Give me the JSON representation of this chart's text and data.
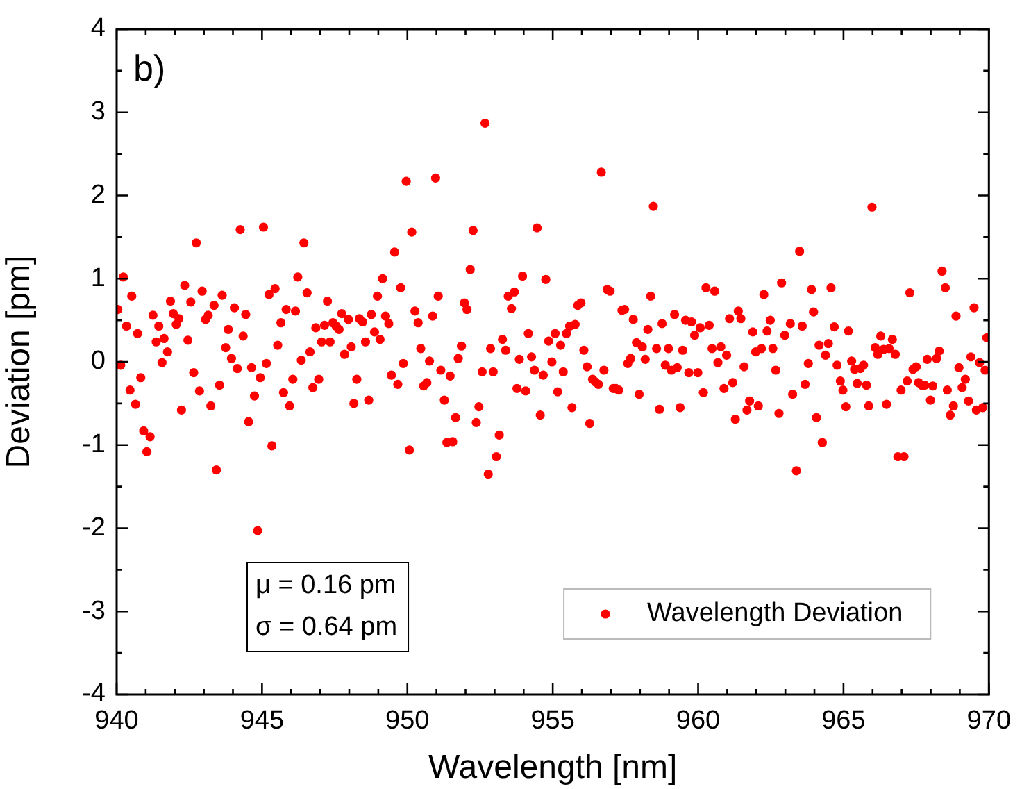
{
  "chart_data": {
    "type": "scatter",
    "xlabel": "Wavelength [nm]",
    "ylabel": "Deviation [pm]",
    "annotations": [
      "b)",
      "μ = 0.16 pm",
      "σ = 0.64 pm"
    ],
    "xlim": [
      940,
      970
    ],
    "ylim": [
      -4,
      4
    ],
    "xticks": [
      940,
      {
        "value": 941,
        "label": null
      },
      {
        "value": 942,
        "label": null
      },
      {
        "value": 943,
        "label": null
      },
      {
        "value": 944,
        "label": null
      },
      945,
      {
        "value": 946,
        "label": null
      },
      {
        "value": 947,
        "label": null
      },
      {
        "value": 948,
        "label": null
      },
      {
        "value": 949,
        "label": null
      },
      950,
      {
        "value": 951,
        "label": null
      },
      {
        "value": 952,
        "label": null
      },
      {
        "value": 953,
        "label": null
      },
      {
        "value": 954,
        "label": null
      },
      955,
      {
        "value": 956,
        "label": null
      },
      {
        "value": 957,
        "label": null
      },
      {
        "value": 958,
        "label": null
      },
      {
        "value": 959,
        "label": null
      },
      960,
      {
        "value": 961,
        "label": null
      },
      {
        "value": 962,
        "label": null
      },
      {
        "value": 963,
        "label": null
      },
      {
        "value": 964,
        "label": null
      },
      965,
      {
        "value": 966,
        "label": null
      },
      {
        "value": 967,
        "label": null
      },
      {
        "value": 968,
        "label": null
      },
      {
        "value": 969,
        "label": null
      },
      970
    ],
    "yticks": [
      -4,
      {
        "value": -3.5,
        "label": null
      },
      -3,
      {
        "value": -2.5,
        "label": null
      },
      -2,
      {
        "value": -1.5,
        "label": null
      },
      -1,
      {
        "value": -0.5,
        "label": null
      },
      0,
      {
        "value": 0.5,
        "label": null
      },
      1,
      {
        "value": 1.5,
        "label": null
      },
      2,
      {
        "value": 2.5,
        "label": null
      },
      3,
      {
        "value": 3.5,
        "label": null
      },
      4
    ],
    "grid": false,
    "legend": "bottom right",
    "marker": "circle",
    "series": [
      {
        "name": "Wavelength Deviation",
        "color": "#ff0000",
        "x": [
          940.04,
          940.23,
          940.14,
          940.34,
          940.52,
          940.72,
          940.46,
          940.65,
          940.83,
          940.93,
          941.15,
          941.04,
          941.25,
          941.36,
          941.45,
          941.56,
          941.63,
          941.75,
          941.85,
          941.95,
          942.05,
          942.14,
          942.23,
          942.34,
          942.45,
          942.55,
          942.65,
          942.74,
          942.85,
          942.94,
          943.06,
          943.15,
          943.24,
          943.35,
          943.43,
          943.54,
          943.63,
          943.75,
          943.84,
          943.95,
          944.05,
          944.15,
          944.25,
          944.35,
          944.44,
          944.54,
          944.64,
          944.74,
          944.85,
          944.94,
          945.05,
          945.15,
          945.24,
          945.34,
          945.45,
          945.54,
          945.65,
          945.74,
          945.83,
          945.95,
          946.06,
          946.15,
          946.23,
          946.35,
          946.44,
          946.55,
          946.65,
          946.75,
          946.85,
          946.95,
          947.05,
          947.15,
          947.25,
          947.34,
          947.44,
          947.55,
          947.65,
          947.74,
          947.84,
          947.97,
          948.07,
          948.16,
          948.26,
          948.35,
          948.46,
          948.56,
          948.67,
          948.76,
          948.87,
          948.97,
          949.06,
          949.15,
          949.25,
          949.36,
          949.45,
          949.56,
          949.67,
          949.77,
          949.86,
          949.96,
          950.07,
          950.15,
          950.26,
          950.37,
          950.46,
          950.56,
          950.67,
          950.76,
          950.87,
          950.97,
          951.06,
          951.15,
          951.27,
          951.36,
          951.47,
          951.56,
          951.66,
          951.75,
          951.86,
          951.96,
          952.05,
          952.16,
          952.26,
          952.37,
          952.46,
          952.57,
          952.67,
          952.78,
          952.86,
          952.95,
          953.06,
          953.16,
          953.27,
          953.38,
          953.47,
          953.58,
          953.68,
          953.77,
          953.85,
          953.96,
          954.07,
          954.16,
          954.27,
          954.37,
          954.46,
          954.57,
          954.67,
          954.76,
          954.86,
          954.97,
          955.08,
          955.17,
          955.27,
          955.36,
          955.47,
          955.58,
          955.66,
          955.77,
          955.86,
          955.97,
          956.07,
          956.18,
          956.27,
          956.37,
          956.46,
          956.57,
          956.67,
          956.76,
          956.87,
          956.97,
          957.08,
          957.17,
          957.27,
          957.38,
          957.47,
          957.58,
          957.68,
          957.77,
          957.88,
          957.97,
          958.08,
          958.18,
          958.27,
          958.37,
          958.46,
          958.57,
          958.67,
          958.76,
          958.87,
          958.98,
          959.08,
          959.19,
          959.28,
          959.38,
          959.47,
          959.57,
          959.68,
          959.77,
          959.88,
          959.99,
          960.07,
          960.18,
          960.27,
          960.38,
          960.48,
          960.57,
          960.68,
          960.78,
          960.89,
          960.98,
          961.08,
          961.19,
          961.28,
          961.38,
          961.47,
          961.58,
          961.68,
          961.77,
          961.88,
          961.98,
          962.07,
          962.18,
          962.26,
          962.37,
          962.48,
          962.57,
          962.67,
          962.78,
          962.87,
          962.98,
          963.17,
          963.25,
          963.38,
          963.49,
          963.58,
          963.68,
          963.79,
          963.9,
          963.97,
          964.07,
          964.16,
          964.27,
          964.38,
          964.48,
          964.57,
          964.68,
          964.78,
          964.89,
          964.98,
          965.08,
          965.17,
          965.28,
          965.38,
          965.47,
          965.58,
          965.69,
          965.79,
          965.87,
          965.98,
          966.09,
          966.18,
          966.28,
          966.38,
          966.48,
          966.57,
          966.68,
          966.78,
          966.87,
          967.08,
          966.98,
          967.19,
          967.28,
          967.39,
          967.5,
          967.58,
          967.69,
          967.79,
          967.88,
          967.99,
          968.07,
          968.2,
          968.29,
          968.39,
          968.5,
          968.57,
          968.67,
          968.78,
          968.87,
          968.97,
          969.08,
          969.19,
          969.3,
          969.38,
          969.49,
          969.57,
          969.68,
          969.79,
          969.87,
          969.93
        ],
        "values": [
          0.63,
          1.02,
          -0.04,
          0.43,
          0.79,
          0.34,
          -0.34,
          -0.51,
          -0.19,
          -0.83,
          -0.9,
          -1.08,
          0.56,
          0.24,
          0.43,
          -0.01,
          0.28,
          0.12,
          0.73,
          0.58,
          0.45,
          0.52,
          -0.58,
          0.92,
          0.26,
          0.72,
          -0.13,
          1.43,
          -0.35,
          0.85,
          0.51,
          0.56,
          -0.53,
          0.68,
          -1.3,
          -0.28,
          0.8,
          0.17,
          0.39,
          0.04,
          0.65,
          -0.08,
          1.59,
          0.31,
          0.57,
          -0.72,
          -0.07,
          -0.41,
          -2.03,
          -0.19,
          1.62,
          -0.02,
          0.81,
          -1.01,
          0.88,
          0.2,
          0.47,
          -0.37,
          0.63,
          -0.53,
          -0.21,
          0.61,
          1.02,
          0.02,
          1.43,
          0.83,
          0.12,
          -0.31,
          0.41,
          -0.21,
          0.24,
          0.44,
          0.73,
          0.24,
          0.47,
          0.43,
          0.39,
          0.58,
          0.09,
          0.51,
          0.18,
          -0.5,
          -0.21,
          0.52,
          0.48,
          0.24,
          -0.46,
          0.57,
          0.36,
          0.79,
          0.27,
          1.0,
          0.55,
          0.46,
          -0.16,
          1.32,
          -0.27,
          0.89,
          -0.02,
          2.17,
          -1.06,
          1.56,
          0.61,
          0.47,
          0.16,
          -0.29,
          -0.25,
          0.01,
          0.55,
          2.21,
          0.79,
          -0.1,
          -0.46,
          -0.97,
          -0.17,
          -0.96,
          -0.67,
          0.04,
          0.19,
          0.71,
          0.63,
          1.11,
          1.58,
          -0.73,
          -0.54,
          -0.12,
          2.87,
          -1.35,
          0.16,
          -0.12,
          -1.14,
          -0.88,
          0.27,
          0.14,
          0.79,
          0.64,
          0.84,
          -0.32,
          0.03,
          1.03,
          -0.35,
          0.34,
          0.06,
          -0.1,
          1.61,
          -0.64,
          -0.16,
          0.99,
          0.25,
          0.0,
          0.34,
          -0.36,
          0.2,
          -0.12,
          0.34,
          0.43,
          -0.55,
          0.45,
          0.68,
          0.71,
          0.14,
          -0.06,
          -0.74,
          -0.21,
          -0.24,
          -0.27,
          2.28,
          -0.1,
          0.87,
          0.85,
          -0.32,
          -0.32,
          -0.34,
          0.62,
          0.63,
          -0.02,
          0.04,
          0.51,
          0.23,
          -0.39,
          0.18,
          0.03,
          0.39,
          0.79,
          1.87,
          0.16,
          -0.57,
          0.46,
          -0.04,
          0.16,
          -0.1,
          0.57,
          -0.07,
          -0.55,
          0.14,
          0.5,
          -0.13,
          0.48,
          0.32,
          -0.13,
          0.41,
          -0.37,
          0.89,
          0.44,
          0.16,
          0.85,
          -0.01,
          0.18,
          -0.32,
          0.08,
          0.52,
          -0.25,
          -0.69,
          0.61,
          0.52,
          -0.06,
          -0.58,
          -0.47,
          0.36,
          0.12,
          -0.53,
          0.16,
          0.81,
          0.37,
          0.5,
          0.16,
          -0.1,
          -0.62,
          0.95,
          0.32,
          0.46,
          -0.39,
          -1.31,
          1.33,
          0.43,
          -0.27,
          -0.02,
          0.87,
          0.6,
          -0.67,
          0.2,
          -0.97,
          0.08,
          0.22,
          0.89,
          0.42,
          -0.04,
          -0.23,
          -0.34,
          -0.54,
          0.37,
          0.01,
          -0.09,
          -0.26,
          -0.08,
          -0.04,
          -0.28,
          -0.53,
          1.86,
          0.17,
          0.09,
          0.31,
          0.15,
          -0.51,
          0.16,
          0.27,
          0.09,
          -1.14,
          -1.14,
          -0.34,
          -0.23,
          0.83,
          -0.09,
          -0.06,
          -0.25,
          -0.28,
          -0.28,
          0.03,
          -0.46,
          -0.29,
          0.04,
          0.13,
          1.09,
          0.89,
          -0.34,
          -0.64,
          -0.53,
          0.55,
          -0.07,
          -0.31,
          -0.21,
          -0.47,
          0.06,
          0.65,
          -0.58,
          -0.01,
          -0.55,
          -0.1,
          0.29
        ]
      }
    ]
  }
}
